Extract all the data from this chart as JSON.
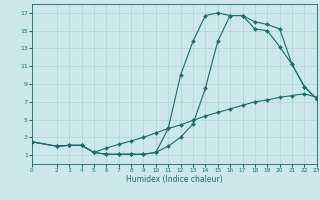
{
  "xlabel": "Humidex (Indice chaleur)",
  "bg_color": "#cce8ea",
  "grid_color": "#aad4d8",
  "line_color": "#1a6b6b",
  "xlim": [
    0,
    23
  ],
  "ylim": [
    0,
    18
  ],
  "xticks": [
    0,
    2,
    3,
    4,
    5,
    6,
    7,
    8,
    9,
    10,
    11,
    12,
    13,
    14,
    15,
    16,
    17,
    18,
    19,
    20,
    21,
    22,
    23
  ],
  "yticks": [
    1,
    3,
    5,
    7,
    9,
    11,
    13,
    15,
    17
  ],
  "line1_x": [
    0,
    2,
    3,
    4,
    5,
    6,
    7,
    8,
    9,
    10,
    11,
    12,
    13,
    14,
    15,
    16,
    17,
    18,
    19,
    20,
    21,
    22,
    23
  ],
  "line1_y": [
    2.5,
    2.0,
    2.1,
    2.1,
    1.3,
    1.1,
    1.1,
    1.1,
    1.1,
    1.3,
    2.0,
    3.0,
    4.5,
    8.5,
    13.8,
    16.7,
    16.7,
    16.0,
    15.7,
    15.2,
    11.2,
    8.7,
    7.3
  ],
  "line2_x": [
    0,
    2,
    3,
    4,
    5,
    6,
    7,
    8,
    9,
    10,
    11,
    12,
    13,
    14,
    15,
    16,
    17,
    18,
    19,
    20,
    21,
    22,
    23
  ],
  "line2_y": [
    2.5,
    2.0,
    2.1,
    2.1,
    1.3,
    1.1,
    1.1,
    1.1,
    1.1,
    1.3,
    4.0,
    10.0,
    13.8,
    16.7,
    17.0,
    16.7,
    16.7,
    15.2,
    15.0,
    13.2,
    11.2,
    8.7,
    7.3
  ],
  "line3_x": [
    0,
    2,
    3,
    4,
    5,
    6,
    7,
    8,
    9,
    10,
    11,
    12,
    13,
    14,
    15,
    16,
    17,
    18,
    19,
    20,
    21,
    22,
    23
  ],
  "line3_y": [
    2.5,
    2.0,
    2.1,
    2.1,
    1.3,
    1.8,
    2.2,
    2.6,
    3.0,
    3.5,
    4.0,
    4.4,
    4.9,
    5.4,
    5.8,
    6.2,
    6.6,
    7.0,
    7.2,
    7.5,
    7.7,
    7.9,
    7.5
  ]
}
